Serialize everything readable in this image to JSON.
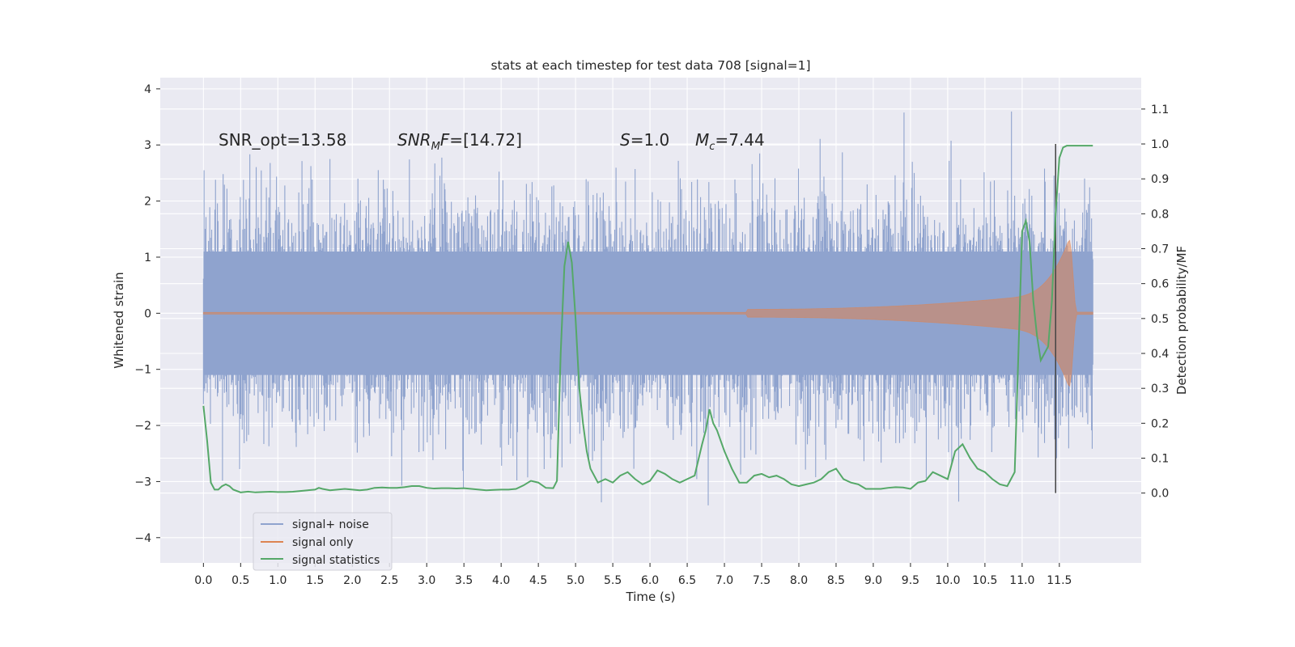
{
  "chart_data": {
    "type": "line",
    "title": "stats at each timestep for test data 708 [signal=1]",
    "xlabel": "Time (s)",
    "ylabel": "Whitened strain",
    "y2label": "Detection probability/MF",
    "xlim": [
      -0.58,
      12.6
    ],
    "ylim": [
      -4.45,
      4.2
    ],
    "y2lim": [
      -0.2,
      1.19
    ],
    "xticks": [
      "0.0",
      "0.5",
      "1.0",
      "1.5",
      "2.0",
      "2.5",
      "3.0",
      "3.5",
      "4.0",
      "4.5",
      "5.0",
      "5.5",
      "6.0",
      "6.5",
      "7.0",
      "7.5",
      "8.0",
      "8.5",
      "9.0",
      "9.5",
      "10.0",
      "10.5",
      "11.0",
      "11.5"
    ],
    "yticks": [
      "−4",
      "−3",
      "−2",
      "−1",
      "0",
      "1",
      "2",
      "3",
      "4"
    ],
    "y2ticks": [
      "0.0",
      "0.1",
      "0.2",
      "0.3",
      "0.4",
      "0.5",
      "0.6",
      "0.7",
      "0.8",
      "0.9",
      "1.0",
      "1.1"
    ],
    "annotations": {
      "snr_opt": "SNR_opt=13.58",
      "snr_mf": "[14.72]",
      "s": "1.0",
      "mc": "7.44"
    },
    "legend": {
      "placement": "lower-left",
      "entries": [
        "signal+ noise",
        "signal only",
        "signal statistics"
      ]
    },
    "colors": {
      "noise": "#8fa3ce",
      "signal": "#dd8452",
      "stats": "#55a868",
      "marker": "#444444",
      "background": "#eaeaf2",
      "grid": "#ffffff"
    },
    "marker_time": 11.45,
    "signal_statistics": {
      "x": [
        0.0,
        0.05,
        0.1,
        0.15,
        0.2,
        0.25,
        0.3,
        0.35,
        0.4,
        0.5,
        0.6,
        0.7,
        0.8,
        0.9,
        1.0,
        1.1,
        1.2,
        1.3,
        1.4,
        1.5,
        1.55,
        1.6,
        1.7,
        1.8,
        1.9,
        2.0,
        2.1,
        2.2,
        2.3,
        2.4,
        2.5,
        2.6,
        2.7,
        2.8,
        2.9,
        3.0,
        3.1,
        3.2,
        3.3,
        3.4,
        3.5,
        3.6,
        3.7,
        3.8,
        3.9,
        4.0,
        4.1,
        4.2,
        4.3,
        4.4,
        4.5,
        4.6,
        4.7,
        4.75,
        4.8,
        4.85,
        4.9,
        4.95,
        5.0,
        5.05,
        5.1,
        5.15,
        5.2,
        5.3,
        5.4,
        5.5,
        5.6,
        5.7,
        5.8,
        5.9,
        6.0,
        6.1,
        6.2,
        6.3,
        6.4,
        6.5,
        6.6,
        6.7,
        6.75,
        6.8,
        6.85,
        6.9,
        6.95,
        7.0,
        7.1,
        7.2,
        7.3,
        7.4,
        7.5,
        7.6,
        7.7,
        7.8,
        7.9,
        8.0,
        8.1,
        8.2,
        8.3,
        8.4,
        8.5,
        8.6,
        8.7,
        8.8,
        8.9,
        9.0,
        9.1,
        9.2,
        9.3,
        9.4,
        9.5,
        9.6,
        9.7,
        9.8,
        9.9,
        10.0,
        10.1,
        10.2,
        10.3,
        10.4,
        10.5,
        10.6,
        10.7,
        10.8,
        10.9,
        10.95,
        11.0,
        11.05,
        11.1,
        11.15,
        11.2,
        11.25,
        11.3,
        11.35,
        11.4,
        11.45,
        11.5,
        11.55,
        11.6,
        11.65,
        11.7,
        11.8,
        11.9,
        11.95
      ],
      "y": [
        0.25,
        0.15,
        0.03,
        0.01,
        0.01,
        0.02,
        0.025,
        0.02,
        0.01,
        0.002,
        0.004,
        0.002,
        0.003,
        0.004,
        0.003,
        0.003,
        0.004,
        0.006,
        0.008,
        0.01,
        0.015,
        0.012,
        0.008,
        0.01,
        0.012,
        0.01,
        0.008,
        0.01,
        0.015,
        0.016,
        0.015,
        0.015,
        0.017,
        0.02,
        0.02,
        0.015,
        0.013,
        0.014,
        0.014,
        0.013,
        0.014,
        0.012,
        0.01,
        0.008,
        0.009,
        0.01,
        0.01,
        0.012,
        0.022,
        0.035,
        0.03,
        0.015,
        0.014,
        0.035,
        0.4,
        0.65,
        0.72,
        0.66,
        0.5,
        0.3,
        0.2,
        0.12,
        0.07,
        0.03,
        0.04,
        0.03,
        0.05,
        0.06,
        0.04,
        0.025,
        0.035,
        0.065,
        0.055,
        0.04,
        0.03,
        0.04,
        0.05,
        0.14,
        0.18,
        0.24,
        0.2,
        0.18,
        0.15,
        0.12,
        0.07,
        0.03,
        0.03,
        0.05,
        0.055,
        0.045,
        0.05,
        0.04,
        0.025,
        0.02,
        0.025,
        0.03,
        0.04,
        0.06,
        0.07,
        0.04,
        0.03,
        0.025,
        0.012,
        0.012,
        0.012,
        0.015,
        0.017,
        0.016,
        0.012,
        0.03,
        0.035,
        0.06,
        0.05,
        0.04,
        0.12,
        0.14,
        0.1,
        0.07,
        0.06,
        0.04,
        0.025,
        0.02,
        0.06,
        0.4,
        0.75,
        0.78,
        0.72,
        0.55,
        0.45,
        0.38,
        0.4,
        0.42,
        0.55,
        0.8,
        0.96,
        0.99,
        0.995,
        0.995,
        0.995,
        0.995,
        0.995,
        0.995
      ]
    }
  }
}
